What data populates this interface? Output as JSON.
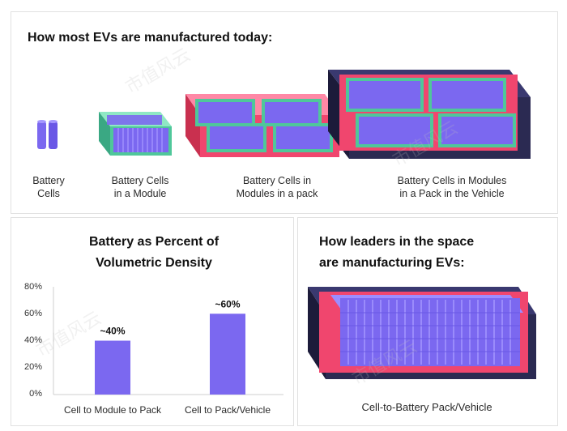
{
  "top_panel": {
    "title": "How most EVs are manufactured today:",
    "labels": [
      [
        "Battery",
        "Cells"
      ],
      [
        "Battery Cells",
        "in a Module"
      ],
      [
        "Battery Cells in",
        "Modules in a pack"
      ],
      [
        "Battery Cells in Modules",
        "in a Pack in the Vehicle"
      ]
    ]
  },
  "chart_panel": {
    "title_lines": [
      "Battery as Percent of",
      "Volumetric Density"
    ]
  },
  "right_panel": {
    "title_lines": [
      "How leaders in the space",
      "are manufacturing EVs:"
    ],
    "caption": "Cell-to-Battery Pack/Vehicle"
  },
  "watermark": "市值风云",
  "colors": {
    "cell": "#7b68f0",
    "module_rim": "#4fc79a",
    "pack_rim": "#f0466e",
    "vehicle": "#2b2a52",
    "bar": "#7b68f0"
  },
  "chart_data": {
    "type": "bar",
    "title": "Battery as Percent of Volumetric Density",
    "categories": [
      "Cell to Module to Pack",
      "Cell to Pack/Vehicle"
    ],
    "values": [
      40,
      60
    ],
    "data_labels": [
      "~40%",
      "~60%"
    ],
    "ylim": [
      0,
      80
    ],
    "yticks": [
      0,
      20,
      40,
      60,
      80
    ],
    "ytick_labels": [
      "0%",
      "20%",
      "40%",
      "60%",
      "80%"
    ],
    "xlabel": "",
    "ylabel": ""
  }
}
